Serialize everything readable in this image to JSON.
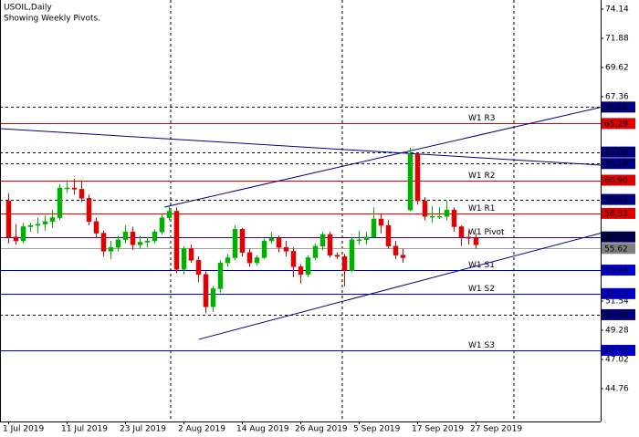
{
  "chart_data": {
    "type": "candlestick",
    "title": "USOIL,Daily",
    "subtitle": "Showing Weekly Pivots.",
    "categories": [
      "1 Jul 2019",
      null,
      null,
      null,
      null,
      null,
      null,
      null,
      "11 Jul 2019",
      null,
      null,
      null,
      null,
      null,
      null,
      null,
      "23 Jul 2019",
      null,
      null,
      null,
      null,
      null,
      null,
      null,
      "2 Aug 2019",
      null,
      null,
      null,
      null,
      null,
      null,
      null,
      "14 Aug 2019",
      null,
      null,
      null,
      null,
      null,
      null,
      null,
      "26 Aug 2019",
      null,
      null,
      null,
      null,
      null,
      null,
      null,
      "5 Sep 2019",
      null,
      null,
      null,
      null,
      null,
      null,
      null,
      "17 Sep 2019",
      null,
      null,
      null,
      null,
      null,
      null,
      null,
      "27 Sep 2019"
    ],
    "ohlc": [
      [
        59.3,
        59.9,
        56.0,
        56.5
      ],
      [
        56.5,
        57.5,
        55.9,
        56.2
      ],
      [
        56.2,
        57.6,
        56.0,
        57.3
      ],
      [
        57.3,
        57.6,
        56.9,
        57.4
      ],
      [
        57.4,
        58.0,
        56.8,
        57.5
      ],
      [
        57.5,
        58.2,
        57.0,
        57.7
      ],
      [
        57.7,
        58.6,
        57.2,
        58.0
      ],
      [
        58.0,
        60.6,
        57.8,
        60.3
      ],
      [
        60.3,
        60.9,
        59.9,
        60.3
      ],
      [
        60.3,
        61.0,
        59.8,
        60.2
      ],
      [
        60.2,
        60.8,
        59.2,
        59.5
      ],
      [
        59.5,
        59.8,
        57.4,
        57.7
      ],
      [
        57.7,
        58.0,
        56.4,
        56.8
      ],
      [
        56.8,
        57.0,
        55.0,
        55.4
      ],
      [
        55.4,
        56.2,
        54.8,
        55.7
      ],
      [
        55.7,
        56.6,
        55.4,
        56.3
      ],
      [
        56.3,
        57.4,
        56.0,
        56.9
      ],
      [
        56.9,
        57.3,
        55.5,
        55.9
      ],
      [
        55.9,
        56.6,
        55.6,
        56.1
      ],
      [
        56.1,
        56.5,
        55.7,
        56.2
      ],
      [
        56.2,
        57.1,
        56.0,
        56.9
      ],
      [
        56.9,
        58.3,
        56.7,
        58.0
      ],
      [
        58.0,
        58.9,
        57.8,
        58.5
      ],
      [
        58.5,
        58.8,
        53.7,
        54.0
      ],
      [
        54.0,
        55.8,
        53.6,
        55.6
      ],
      [
        55.6,
        55.9,
        54.5,
        54.7
      ],
      [
        54.7,
        55.0,
        53.0,
        53.6
      ],
      [
        53.6,
        53.9,
        50.6,
        51.1
      ],
      [
        51.1,
        52.7,
        50.7,
        52.5
      ],
      [
        52.5,
        54.7,
        52.2,
        54.5
      ],
      [
        54.5,
        55.2,
        54.2,
        54.9
      ],
      [
        54.9,
        57.4,
        54.7,
        57.1
      ],
      [
        57.1,
        57.2,
        55.0,
        55.3
      ],
      [
        55.3,
        55.6,
        54.2,
        54.5
      ],
      [
        54.5,
        55.1,
        54.3,
        54.9
      ],
      [
        54.9,
        56.4,
        54.8,
        56.2
      ],
      [
        56.2,
        56.9,
        56.0,
        56.4
      ],
      [
        56.4,
        56.6,
        55.3,
        55.7
      ],
      [
        55.7,
        56.2,
        55.0,
        55.4
      ],
      [
        55.4,
        55.7,
        53.4,
        54.2
      ],
      [
        54.2,
        54.4,
        52.9,
        53.6
      ],
      [
        53.6,
        55.1,
        53.4,
        54.9
      ],
      [
        54.9,
        56.0,
        54.7,
        55.8
      ],
      [
        55.8,
        56.9,
        55.5,
        56.7
      ],
      [
        56.7,
        56.9,
        54.9,
        55.1
      ],
      [
        55.1,
        55.3,
        54.8,
        55.0
      ],
      [
        55.0,
        55.2,
        52.7,
        53.9
      ],
      [
        53.9,
        56.5,
        53.8,
        56.3
      ],
      [
        56.3,
        57.0,
        55.9,
        56.3
      ],
      [
        56.3,
        56.9,
        55.9,
        56.5
      ],
      [
        56.5,
        58.8,
        56.4,
        57.9
      ],
      [
        57.9,
        58.3,
        56.8,
        57.4
      ],
      [
        57.4,
        57.8,
        55.6,
        55.8
      ],
      [
        55.8,
        56.2,
        54.8,
        55.1
      ],
      [
        55.1,
        55.6,
        54.5,
        54.9
      ],
      [
        58.6,
        63.4,
        58.5,
        62.9
      ],
      [
        62.9,
        63.0,
        59.0,
        59.3
      ],
      [
        59.3,
        59.6,
        57.8,
        58.1
      ],
      [
        58.1,
        58.9,
        57.6,
        58.1
      ],
      [
        58.1,
        58.8,
        57.9,
        58.1
      ],
      [
        58.1,
        59.3,
        57.8,
        58.6
      ],
      [
        58.6,
        58.8,
        56.9,
        57.3
      ],
      [
        57.3,
        57.4,
        55.8,
        56.5
      ],
      [
        56.5,
        57.0,
        55.9,
        56.4
      ],
      [
        56.4,
        56.8,
        55.6,
        55.9
      ]
    ],
    "up_color": "#00b000",
    "down_color": "#e00000",
    "ylim": [
      42.22,
      74.85
    ],
    "yticks": [
      74.14,
      71.88,
      69.62,
      67.36,
      51.54,
      49.28,
      47.02,
      44.76
    ],
    "levels": [
      {
        "value": 66.56,
        "value_label": "66.56",
        "color": "#000000",
        "dashed": true,
        "box": "#000080"
      },
      {
        "name": "W1 R3",
        "value": 65.29,
        "value_label": "65.29",
        "color": "#e00000",
        "dashed": false,
        "box": "#e00000"
      },
      {
        "value": 63.08,
        "value_label": "63.08",
        "color": "#000000",
        "dashed": true,
        "box": "#000080"
      },
      {
        "value": 62.19,
        "value_label": "62.19",
        "color": "#000000",
        "dashed": true,
        "box": "#000080"
      },
      {
        "name": "W1 R2",
        "value": 60.9,
        "value_label": "60.90",
        "color": "#e00000",
        "dashed": false,
        "box": "#e00000"
      },
      {
        "value": 59.41,
        "value_label": "59.41",
        "color": "#000000",
        "dashed": true,
        "box": "#000080"
      },
      {
        "name": "W1 R1",
        "value": 58.33,
        "value_label": "58.33",
        "color": "#e00000",
        "dashed": false,
        "box": "#e00000"
      },
      {
        "name": "W1 Pivot",
        "value": 56.51,
        "value_label": "56.51",
        "color": "#400080",
        "dashed": false,
        "box": "#000050"
      },
      {
        "value": 55.62,
        "value_label": "55.62",
        "color": "#a0a0a0",
        "dashed": false,
        "box": "#808080"
      },
      {
        "name": "W1 S1",
        "value": 53.94,
        "value_label": "53.94",
        "color": "#0000c8",
        "dashed": false,
        "box": "#0000c8"
      },
      {
        "name": "W1 S2",
        "value": 52.12,
        "value_label": "52.12",
        "color": "#0000c8",
        "dashed": false,
        "box": "#0000c8"
      },
      {
        "value": 50.49,
        "value_label": "50.49",
        "color": "#000000",
        "dashed": true,
        "box": "#000080"
      },
      {
        "name": "W1 S3",
        "value": 47.73,
        "value_label": "47.73",
        "color": "#0000c8",
        "dashed": false,
        "box": "#0000c8"
      }
    ],
    "trendlines": [
      {
        "color": "#00008b",
        "x": [
          21.4,
          81.4
        ],
        "y": [
          58.82,
          66.58
        ]
      },
      {
        "color": "#00008b",
        "x": [
          26.1,
          81.4
        ],
        "y": [
          48.58,
          56.84
        ]
      },
      {
        "color": "#00008b",
        "x": [
          -1.1,
          81.4
        ],
        "y": [
          64.89,
          62.06
        ]
      }
    ]
  }
}
